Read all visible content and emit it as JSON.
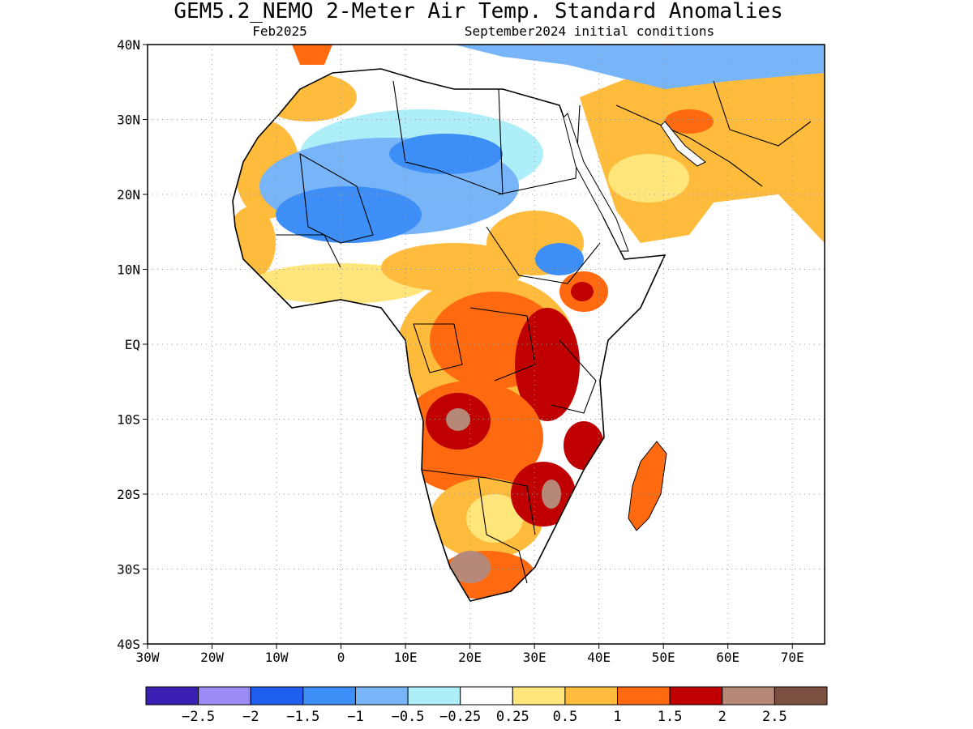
{
  "header": {
    "title": "GEM5.2_NEMO 2-Meter Air Temp. Standard Anomalies",
    "valid_month": "Feb2025",
    "init_conditions": "September2024 initial conditions"
  },
  "map": {
    "lon_range": [
      -30,
      75
    ],
    "lat_range": [
      -40,
      40
    ],
    "lat_ticks": [
      "40N",
      "30N",
      "20N",
      "10N",
      "EQ",
      "10S",
      "20S",
      "30S",
      "40S"
    ],
    "lon_ticks": [
      "30W",
      "20W",
      "10W",
      "0",
      "10E",
      "20E",
      "30E",
      "40E",
      "50E",
      "60E",
      "70E"
    ]
  },
  "colorbar": {
    "colors": [
      "#3a1fb2",
      "#9b8cf5",
      "#1e5ff0",
      "#3d8ef6",
      "#78b4f8",
      "#aeeef9",
      "#ffffff",
      "#ffe57a",
      "#ffbb3c",
      "#ff6a10",
      "#c00000",
      "#b58878",
      "#7b5040"
    ],
    "labels": [
      "-2.5",
      "-2",
      "-1.5",
      "-1",
      "-0.5",
      "-0.25",
      "0.25",
      "0.5",
      "1",
      "1.5",
      "2",
      "2.5"
    ]
  }
}
